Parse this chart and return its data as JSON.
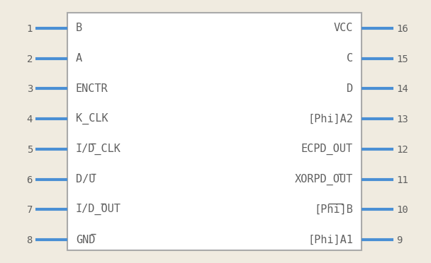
{
  "bg_color": "#f0ebe0",
  "body_color": "#aaaaaa",
  "body_fill": "#ffffff",
  "pin_color": "#4a8fd4",
  "text_color": "#606060",
  "left_labels": [
    "B",
    "A",
    "ENCTR",
    "K_CLK",
    "I/D_CLK",
    "D/U",
    "I/D_OUT",
    "GND"
  ],
  "left_nums": [
    1,
    2,
    3,
    4,
    5,
    6,
    7,
    8
  ],
  "right_labels": [
    "VCC",
    "C",
    "D",
    "[Phi]A2",
    "ECPD_OUT",
    "XORPD_OUT",
    "[Phi]B",
    "[Phi]A1"
  ],
  "right_nums": [
    16,
    15,
    14,
    13,
    12,
    11,
    10,
    9
  ],
  "left_overline_ranges": [
    [],
    [],
    [],
    [],
    [
      [
        3,
        4
      ]
    ],
    [
      [
        3,
        4
      ]
    ],
    [
      [
        5,
        6
      ]
    ],
    [
      [
        3,
        4
      ]
    ]
  ],
  "right_overline_ranges": [
    [],
    [],
    [],
    [],
    [],
    [
      [
        6,
        7
      ]
    ],
    [
      [
        1,
        4
      ]
    ],
    []
  ],
  "n_pins": 8,
  "font_size": 11,
  "num_font_size": 10
}
